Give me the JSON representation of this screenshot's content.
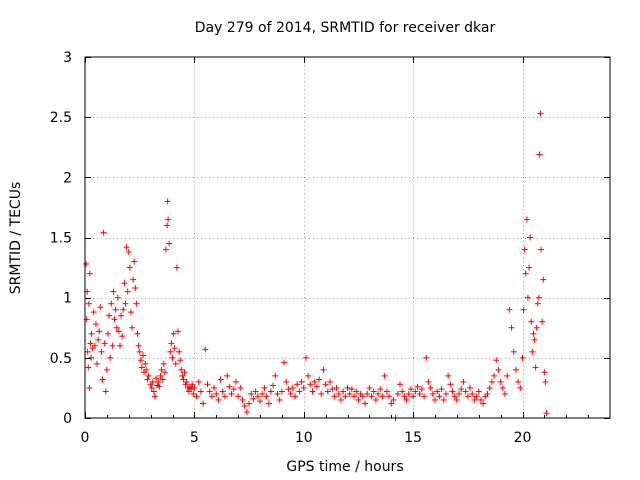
{
  "chart_data": {
    "type": "scatter",
    "title": "Day 279 of 2014, SRMTID for receiver dkar",
    "xlabel": "GPS time / hours",
    "ylabel": "SRMTID / TECUs",
    "xlim": [
      0,
      24
    ],
    "ylim": [
      0,
      3
    ],
    "xticks": [
      0,
      5,
      10,
      15,
      20
    ],
    "yticks": [
      0,
      0.5,
      1,
      1.5,
      2,
      2.5,
      3
    ],
    "xtick_labels": [
      "0",
      "5",
      "10",
      "15",
      "20"
    ],
    "ytick_labels": [
      "0",
      "0.5",
      "1",
      "1.5",
      "2",
      "2.5",
      "3"
    ],
    "grid": true,
    "marker": "+",
    "color": "#ff0000",
    "series": [
      {
        "name": "SRMTID",
        "points": [
          [
            0.05,
            1.28
          ],
          [
            0.08,
            0.82
          ],
          [
            0.1,
            1.05
          ],
          [
            0.12,
            0.55
          ],
          [
            0.15,
            0.42
          ],
          [
            0.18,
            0.95
          ],
          [
            0.2,
            0.25
          ],
          [
            0.22,
            1.2
          ],
          [
            0.25,
            0.62
          ],
          [
            0.28,
            0.5
          ],
          [
            0.3,
            0.7
          ],
          [
            0.35,
            0.58
          ],
          [
            0.4,
            0.88
          ],
          [
            0.45,
            0.6
          ],
          [
            0.5,
            0.78
          ],
          [
            0.55,
            0.45
          ],
          [
            0.6,
            0.65
          ],
          [
            0.65,
            0.72
          ],
          [
            0.7,
            0.92
          ],
          [
            0.75,
            0.55
          ],
          [
            0.8,
            0.32
          ],
          [
            0.85,
            1.54
          ],
          [
            0.9,
            0.62
          ],
          [
            0.95,
            0.22
          ],
          [
            1.0,
            0.4
          ],
          [
            1.05,
            0.7
          ],
          [
            1.1,
            0.85
          ],
          [
            1.15,
            0.5
          ],
          [
            1.2,
            0.95
          ],
          [
            1.25,
            0.6
          ],
          [
            1.3,
            1.05
          ],
          [
            1.35,
            0.82
          ],
          [
            1.4,
            0.9
          ],
          [
            1.45,
            0.75
          ],
          [
            1.5,
            1.0
          ],
          [
            1.55,
            0.72
          ],
          [
            1.6,
            0.6
          ],
          [
            1.65,
            0.85
          ],
          [
            1.7,
            0.68
          ],
          [
            1.75,
            0.9
          ],
          [
            1.8,
            1.12
          ],
          [
            1.85,
            0.95
          ],
          [
            1.9,
            1.42
          ],
          [
            1.95,
            1.05
          ],
          [
            2.0,
            1.38
          ],
          [
            2.05,
            1.25
          ],
          [
            2.1,
            0.88
          ],
          [
            2.15,
            0.75
          ],
          [
            2.2,
            1.15
          ],
          [
            2.25,
            1.3
          ],
          [
            2.3,
            1.08
          ],
          [
            2.35,
            0.95
          ],
          [
            2.4,
            0.7
          ],
          [
            2.45,
            0.6
          ],
          [
            2.5,
            0.55
          ],
          [
            2.55,
            0.48
          ],
          [
            2.6,
            0.42
          ],
          [
            2.65,
            0.52
          ],
          [
            2.7,
            0.38
          ],
          [
            2.75,
            0.45
          ],
          [
            2.8,
            0.4
          ],
          [
            2.85,
            0.32
          ],
          [
            2.9,
            0.35
          ],
          [
            3.0,
            0.28
          ],
          [
            3.05,
            0.25
          ],
          [
            3.1,
            0.3
          ],
          [
            3.15,
            0.22
          ],
          [
            3.2,
            0.18
          ],
          [
            3.25,
            0.33
          ],
          [
            3.3,
            0.27
          ],
          [
            3.35,
            0.3
          ],
          [
            3.4,
            0.26
          ],
          [
            3.45,
            0.35
          ],
          [
            3.5,
            0.4
          ],
          [
            3.55,
            0.32
          ],
          [
            3.6,
            0.45
          ],
          [
            3.65,
            0.38
          ],
          [
            3.7,
            1.4
          ],
          [
            3.75,
            1.6
          ],
          [
            3.78,
            1.8
          ],
          [
            3.8,
            1.65
          ],
          [
            3.85,
            1.45
          ],
          [
            3.9,
            0.55
          ],
          [
            3.95,
            0.62
          ],
          [
            4.0,
            0.5
          ],
          [
            4.05,
            0.7
          ],
          [
            4.1,
            0.58
          ],
          [
            4.15,
            0.45
          ],
          [
            4.2,
            1.25
          ],
          [
            4.25,
            0.72
          ],
          [
            4.3,
            0.55
          ],
          [
            4.35,
            0.48
          ],
          [
            4.4,
            0.4
          ],
          [
            4.45,
            0.35
          ],
          [
            4.5,
            0.32
          ],
          [
            4.55,
            0.38
          ],
          [
            4.6,
            0.28
          ],
          [
            4.65,
            0.3
          ],
          [
            4.7,
            0.25
          ],
          [
            4.75,
            0.22
          ],
          [
            4.8,
            0.26
          ],
          [
            4.85,
            0.24
          ],
          [
            4.9,
            0.28
          ],
          [
            4.95,
            0.2
          ],
          [
            5.0,
            0.25
          ],
          [
            5.1,
            0.18
          ],
          [
            5.2,
            0.3
          ],
          [
            5.3,
            0.22
          ],
          [
            5.4,
            0.12
          ],
          [
            5.5,
            0.57
          ],
          [
            5.6,
            0.28
          ],
          [
            5.7,
            0.22
          ],
          [
            5.8,
            0.18
          ],
          [
            5.9,
            0.25
          ],
          [
            6.0,
            0.2
          ],
          [
            6.1,
            0.15
          ],
          [
            6.2,
            0.32
          ],
          [
            6.3,
            0.22
          ],
          [
            6.4,
            0.18
          ],
          [
            6.5,
            0.35
          ],
          [
            6.6,
            0.26
          ],
          [
            6.7,
            0.2
          ],
          [
            6.8,
            0.24
          ],
          [
            6.9,
            0.3
          ],
          [
            7.0,
            0.18
          ],
          [
            7.1,
            0.25
          ],
          [
            7.2,
            0.15
          ],
          [
            7.3,
            0.1
          ],
          [
            7.4,
            0.05
          ],
          [
            7.5,
            0.12
          ],
          [
            7.6,
            0.2
          ],
          [
            7.7,
            0.16
          ],
          [
            7.8,
            0.22
          ],
          [
            7.9,
            0.18
          ],
          [
            8.0,
            0.14
          ],
          [
            8.1,
            0.2
          ],
          [
            8.2,
            0.25
          ],
          [
            8.3,
            0.18
          ],
          [
            8.4,
            0.12
          ],
          [
            8.5,
            0.22
          ],
          [
            8.6,
            0.27
          ],
          [
            8.7,
            0.35
          ],
          [
            8.8,
            0.2
          ],
          [
            8.9,
            0.15
          ],
          [
            9.0,
            0.22
          ],
          [
            9.1,
            0.46
          ],
          [
            9.2,
            0.3
          ],
          [
            9.3,
            0.24
          ],
          [
            9.4,
            0.2
          ],
          [
            9.5,
            0.25
          ],
          [
            9.6,
            0.18
          ],
          [
            9.7,
            0.28
          ],
          [
            9.8,
            0.22
          ],
          [
            9.9,
            0.3
          ],
          [
            10.0,
            0.25
          ],
          [
            10.1,
            0.5
          ],
          [
            10.2,
            0.35
          ],
          [
            10.3,
            0.28
          ],
          [
            10.4,
            0.22
          ],
          [
            10.5,
            0.3
          ],
          [
            10.6,
            0.26
          ],
          [
            10.7,
            0.32
          ],
          [
            10.8,
            0.2
          ],
          [
            10.9,
            0.4
          ],
          [
            11.0,
            0.28
          ],
          [
            11.1,
            0.22
          ],
          [
            11.2,
            0.3
          ],
          [
            11.3,
            0.24
          ],
          [
            11.4,
            0.18
          ],
          [
            11.5,
            0.25
          ],
          [
            11.6,
            0.2
          ],
          [
            11.7,
            0.15
          ],
          [
            11.8,
            0.22
          ],
          [
            11.9,
            0.18
          ],
          [
            12.0,
            0.25
          ],
          [
            12.1,
            0.2
          ],
          [
            12.2,
            0.24
          ],
          [
            12.3,
            0.18
          ],
          [
            12.4,
            0.22
          ],
          [
            12.5,
            0.15
          ],
          [
            12.6,
            0.2
          ],
          [
            12.7,
            0.18
          ],
          [
            12.8,
            0.12
          ],
          [
            12.9,
            0.2
          ],
          [
            13.0,
            0.25
          ],
          [
            13.1,
            0.18
          ],
          [
            13.2,
            0.22
          ],
          [
            13.3,
            0.15
          ],
          [
            13.4,
            0.2
          ],
          [
            13.5,
            0.24
          ],
          [
            13.6,
            0.18
          ],
          [
            13.7,
            0.35
          ],
          [
            13.8,
            0.22
          ],
          [
            13.9,
            0.18
          ],
          [
            14.0,
            0.12
          ],
          [
            14.1,
            0.15
          ],
          [
            14.2,
            0.0
          ],
          [
            14.3,
            0.2
          ],
          [
            14.4,
            0.28
          ],
          [
            14.5,
            0.22
          ],
          [
            14.6,
            0.18
          ],
          [
            14.7,
            0.15
          ],
          [
            14.8,
            0.2
          ],
          [
            14.9,
            0.24
          ],
          [
            15.0,
            0.18
          ],
          [
            15.1,
            0.22
          ],
          [
            15.2,
            0.26
          ],
          [
            15.3,
            0.2
          ],
          [
            15.4,
            0.24
          ],
          [
            15.5,
            0.18
          ],
          [
            15.6,
            0.5
          ],
          [
            15.7,
            0.3
          ],
          [
            15.8,
            0.25
          ],
          [
            15.9,
            0.2
          ],
          [
            16.0,
            0.15
          ],
          [
            16.1,
            0.22
          ],
          [
            16.2,
            0.18
          ],
          [
            16.3,
            0.24
          ],
          [
            16.4,
            0.15
          ],
          [
            16.5,
            0.2
          ],
          [
            16.6,
            0.35
          ],
          [
            16.7,
            0.28
          ],
          [
            16.8,
            0.22
          ],
          [
            16.9,
            0.18
          ],
          [
            17.0,
            0.15
          ],
          [
            17.1,
            0.2
          ],
          [
            17.2,
            0.24
          ],
          [
            17.3,
            0.3
          ],
          [
            17.4,
            0.22
          ],
          [
            17.5,
            0.18
          ],
          [
            17.6,
            0.25
          ],
          [
            17.7,
            0.2
          ],
          [
            17.8,
            0.15
          ],
          [
            17.9,
            0.18
          ],
          [
            18.0,
            0.22
          ],
          [
            18.1,
            0.15
          ],
          [
            18.2,
            0.12
          ],
          [
            18.3,
            0.18
          ],
          [
            18.4,
            0.2
          ],
          [
            18.5,
            0.25
          ],
          [
            18.6,
            0.3
          ],
          [
            18.7,
            0.35
          ],
          [
            18.8,
            0.48
          ],
          [
            18.9,
            0.4
          ],
          [
            19.0,
            0.3
          ],
          [
            19.1,
            0.25
          ],
          [
            19.2,
            0.2
          ],
          [
            19.3,
            0.35
          ],
          [
            19.4,
            0.9
          ],
          [
            19.5,
            0.75
          ],
          [
            19.6,
            0.55
          ],
          [
            19.7,
            0.4
          ],
          [
            19.8,
            0.3
          ],
          [
            19.9,
            0.25
          ],
          [
            20.0,
            0.5
          ],
          [
            20.05,
            0.9
          ],
          [
            20.1,
            1.4
          ],
          [
            20.15,
            1.2
          ],
          [
            20.2,
            1.65
          ],
          [
            20.25,
            1.0
          ],
          [
            20.3,
            1.25
          ],
          [
            20.35,
            1.5
          ],
          [
            20.4,
            0.8
          ],
          [
            20.45,
            0.55
          ],
          [
            20.5,
            0.7
          ],
          [
            20.55,
            0.65
          ],
          [
            20.6,
            0.42
          ],
          [
            20.65,
            0.75
          ],
          [
            20.7,
            0.95
          ],
          [
            20.75,
            1.0
          ],
          [
            20.78,
            2.19
          ],
          [
            20.82,
            2.53
          ],
          [
            20.85,
            1.4
          ],
          [
            20.9,
            0.8
          ],
          [
            20.95,
            1.15
          ],
          [
            21.0,
            0.38
          ],
          [
            21.05,
            0.3
          ],
          [
            21.1,
            0.04
          ]
        ]
      }
    ]
  }
}
